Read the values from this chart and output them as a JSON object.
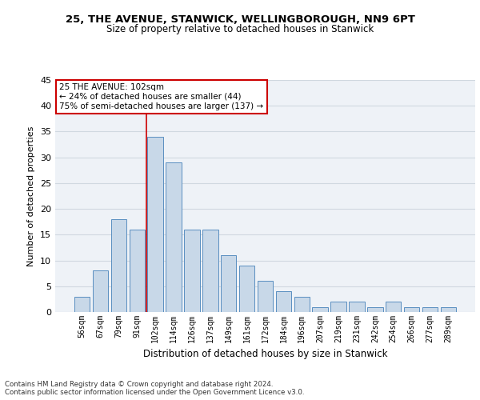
{
  "title1": "25, THE AVENUE, STANWICK, WELLINGBOROUGH, NN9 6PT",
  "title2": "Size of property relative to detached houses in Stanwick",
  "xlabel": "Distribution of detached houses by size in Stanwick",
  "ylabel": "Number of detached properties",
  "categories": [
    "56sqm",
    "67sqm",
    "79sqm",
    "91sqm",
    "102sqm",
    "114sqm",
    "126sqm",
    "137sqm",
    "149sqm",
    "161sqm",
    "172sqm",
    "184sqm",
    "196sqm",
    "207sqm",
    "219sqm",
    "231sqm",
    "242sqm",
    "254sqm",
    "266sqm",
    "277sqm",
    "289sqm"
  ],
  "values": [
    3,
    8,
    18,
    16,
    34,
    29,
    16,
    16,
    11,
    9,
    6,
    4,
    3,
    1,
    2,
    2,
    1,
    2,
    1,
    1,
    1
  ],
  "bar_color": "#c8d8e8",
  "bar_edge_color": "#5a8fc0",
  "highlight_index": 4,
  "highlight_line_color": "#cc0000",
  "annotation_line1": "25 THE AVENUE: 102sqm",
  "annotation_line2": "← 24% of detached houses are smaller (44)",
  "annotation_line3": "75% of semi-detached houses are larger (137) →",
  "annotation_box_color": "#ffffff",
  "annotation_box_edge_color": "#cc0000",
  "grid_color": "#d0d8e0",
  "background_color": "#eef2f7",
  "footer_text": "Contains HM Land Registry data © Crown copyright and database right 2024.\nContains public sector information licensed under the Open Government Licence v3.0.",
  "ylim": [
    0,
    45
  ],
  "yticks": [
    0,
    5,
    10,
    15,
    20,
    25,
    30,
    35,
    40,
    45
  ]
}
